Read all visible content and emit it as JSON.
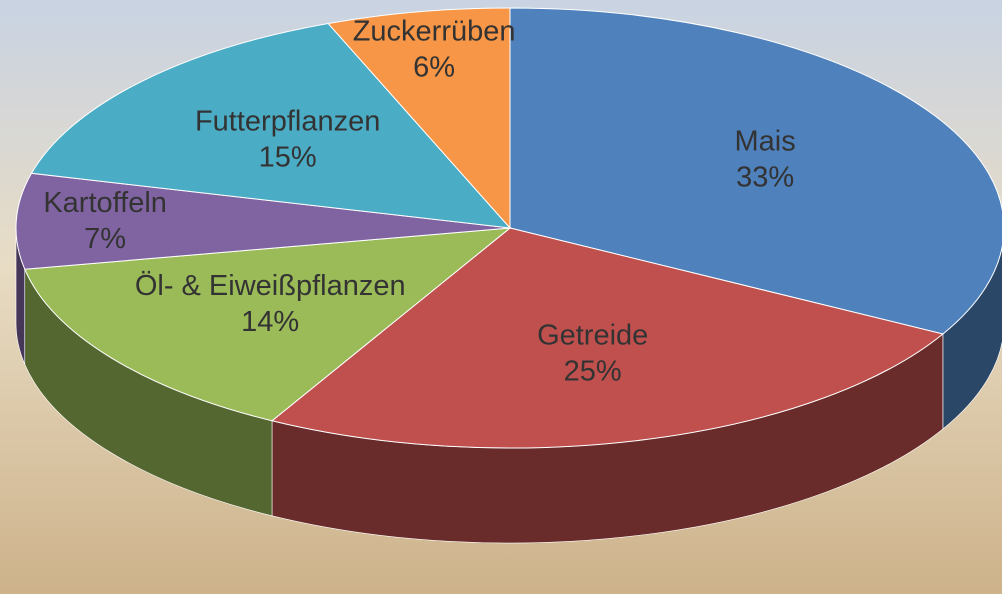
{
  "chart_data": {
    "type": "pie3d",
    "categories": [
      "Mais",
      "Getreide",
      "Öl- & Eiweißpflanzen",
      "Kartoffeln",
      "Futterpflanzen",
      "Zuckerrüben"
    ],
    "values": [
      33,
      25,
      14,
      7,
      15,
      6
    ],
    "value_labels": [
      "33%",
      "25%",
      "14%",
      "7%",
      "15%",
      "6%"
    ],
    "colors": [
      "#4f81bd",
      "#c0504d",
      "#9bbb59",
      "#8064a2",
      "#4bacc6",
      "#f79646"
    ]
  }
}
